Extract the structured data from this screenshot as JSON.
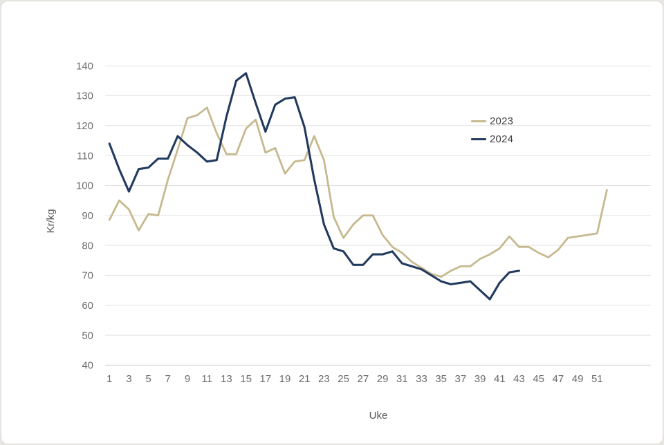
{
  "page": {
    "background_color": "#e8e6e3",
    "card_color": "#ffffff"
  },
  "legend": {
    "items": [
      {
        "label": "2023",
        "color": "#c6b98f"
      },
      {
        "label": "2024",
        "color": "#223a5e"
      }
    ]
  },
  "axes": {
    "x_title": "Uke",
    "y_title": "Kr/kg",
    "tick_color": "#6b6b6b",
    "title_color": "#595959",
    "gridline_color": "#e2e2e2",
    "baseline_color": "#cccccc"
  },
  "chart_data": {
    "type": "line",
    "title": "",
    "xlabel": "Uke",
    "ylabel": "Kr/kg",
    "xlim": [
      1,
      52
    ],
    "ylim": [
      40,
      140
    ],
    "grid": "horizontal",
    "legend_position": "inside-upper-right",
    "x": [
      1,
      2,
      3,
      4,
      5,
      6,
      7,
      8,
      9,
      10,
      11,
      12,
      13,
      14,
      15,
      16,
      17,
      18,
      19,
      20,
      21,
      22,
      23,
      24,
      25,
      26,
      27,
      28,
      29,
      30,
      31,
      32,
      33,
      34,
      35,
      36,
      37,
      38,
      39,
      40,
      41,
      42,
      43,
      44,
      45,
      46,
      47,
      48,
      49,
      50,
      51,
      52
    ],
    "x_ticks": [
      1,
      3,
      5,
      7,
      9,
      11,
      13,
      15,
      17,
      19,
      21,
      23,
      25,
      27,
      29,
      31,
      33,
      35,
      37,
      39,
      41,
      43,
      45,
      47,
      49,
      51
    ],
    "y_ticks": [
      40,
      50,
      60,
      70,
      80,
      90,
      100,
      110,
      120,
      130,
      140
    ],
    "series": [
      {
        "name": "2023",
        "color": "#c6b98f",
        "stroke_width": 2.8,
        "values": [
          88.5,
          95,
          92,
          85,
          90.5,
          90,
          102,
          112,
          122.5,
          123.5,
          126,
          117.5,
          110.5,
          110.5,
          119,
          122,
          111,
          112.5,
          104,
          108,
          108.5,
          116.5,
          108.5,
          89.5,
          82.5,
          87,
          90,
          90,
          83.5,
          79.5,
          77.5,
          74.5,
          72.5,
          70.5,
          69.5,
          71.5,
          73,
          73,
          75.5,
          77,
          79,
          83,
          79.5,
          79.5,
          77.5,
          76,
          78.5,
          82.5,
          83,
          83.5,
          84,
          98.5
        ]
      },
      {
        "name": "2024",
        "color": "#223a5e",
        "stroke_width": 3.1,
        "values": [
          114,
          105.5,
          98,
          105.5,
          106,
          109,
          109,
          116.5,
          113.5,
          111,
          108,
          108.5,
          123,
          135,
          137.5,
          127.5,
          118,
          127,
          129,
          129.5,
          119.5,
          102,
          87,
          79,
          78,
          73.5,
          73.5,
          77,
          77,
          78,
          74,
          73,
          72,
          70,
          68,
          67,
          67.5,
          68,
          65,
          62,
          67.5,
          71,
          71.5
        ]
      }
    ]
  }
}
